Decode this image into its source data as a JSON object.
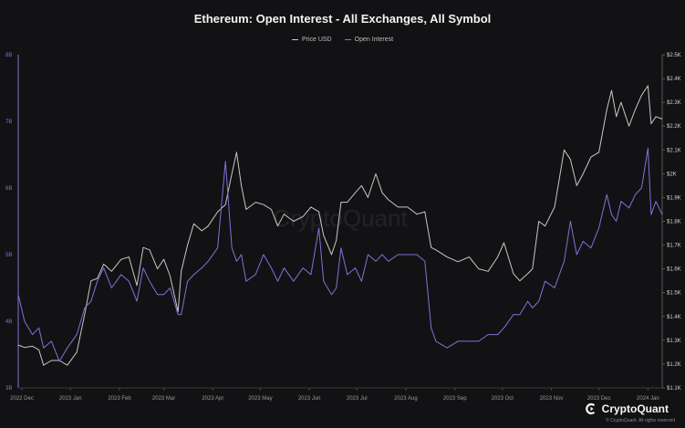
{
  "chart_data": {
    "type": "line",
    "title": "Ethereum: Open Interest - All Exchanges, All Symbol",
    "legend_position": "top-center",
    "watermark": "CryptoQuant",
    "grid": false,
    "x_ticks": [
      "2022 Dec",
      "2023 Jan",
      "2023 Feb",
      "2023 Mar",
      "2023 Apr",
      "2023 May",
      "2023 Jun",
      "2023 Jul",
      "2023 Aug",
      "2023 Sep",
      "2023 Oct",
      "2023 Nov",
      "2023 Dec",
      "2024 Jan"
    ],
    "x_range": [
      "2022-11-29",
      "2024-01-10"
    ],
    "y_left": {
      "ticks": [
        "3B",
        "4B",
        "5B",
        "6B",
        "7B",
        "8B"
      ],
      "range": [
        3,
        8
      ],
      "unit": "B"
    },
    "y_right": {
      "ticks": [
        "$1.1K",
        "$1.2K",
        "$1.3K",
        "$1.4K",
        "$1.5K",
        "$1.6K",
        "$1.7K",
        "$1.8K",
        "$1.9K",
        "$2K",
        "$2.1K",
        "$2.2K",
        "$2.3K",
        "$2.4K",
        "$2.5K"
      ],
      "range": [
        1100,
        2500
      ],
      "unit": "USD"
    },
    "series": [
      {
        "name": "Price USD",
        "axis": "right",
        "color": "#c8c8c8",
        "x": [
          "2022-11-29",
          "2022-12-03",
          "2022-12-08",
          "2022-12-12",
          "2022-12-15",
          "2022-12-20",
          "2022-12-25",
          "2022-12-30",
          "2023-01-05",
          "2023-01-10",
          "2023-01-14",
          "2023-01-18",
          "2023-01-22",
          "2023-01-27",
          "2023-02-02",
          "2023-02-07",
          "2023-02-12",
          "2023-02-16",
          "2023-02-20",
          "2023-02-25",
          "2023-03-01",
          "2023-03-05",
          "2023-03-10",
          "2023-03-12",
          "2023-03-16",
          "2023-03-20",
          "2023-03-25",
          "2023-03-29",
          "2023-04-04",
          "2023-04-09",
          "2023-04-13",
          "2023-04-16",
          "2023-04-19",
          "2023-04-22",
          "2023-04-28",
          "2023-05-03",
          "2023-05-08",
          "2023-05-12",
          "2023-05-16",
          "2023-05-22",
          "2023-05-28",
          "2023-06-02",
          "2023-06-07",
          "2023-06-10",
          "2023-06-15",
          "2023-06-18",
          "2023-06-21",
          "2023-06-25",
          "2023-06-30",
          "2023-07-04",
          "2023-07-08",
          "2023-07-13",
          "2023-07-17",
          "2023-07-21",
          "2023-07-27",
          "2023-08-02",
          "2023-08-08",
          "2023-08-13",
          "2023-08-17",
          "2023-08-20",
          "2023-08-27",
          "2023-09-03",
          "2023-09-10",
          "2023-09-16",
          "2023-09-22",
          "2023-09-28",
          "2023-10-02",
          "2023-10-08",
          "2023-10-12",
          "2023-10-17",
          "2023-10-20",
          "2023-10-24",
          "2023-10-28",
          "2023-11-03",
          "2023-11-09",
          "2023-11-13",
          "2023-11-17",
          "2023-11-21",
          "2023-11-26",
          "2023-12-01",
          "2023-12-06",
          "2023-12-09",
          "2023-12-12",
          "2023-12-15",
          "2023-12-20",
          "2023-12-24",
          "2023-12-28",
          "2024-01-01",
          "2024-01-03",
          "2024-01-06",
          "2024-01-10"
        ],
        "y": [
          1280,
          1270,
          1275,
          1260,
          1195,
          1215,
          1215,
          1195,
          1250,
          1410,
          1550,
          1560,
          1620,
          1590,
          1640,
          1650,
          1530,
          1690,
          1680,
          1600,
          1640,
          1570,
          1420,
          1590,
          1700,
          1790,
          1760,
          1780,
          1840,
          1870,
          2000,
          2090,
          1950,
          1850,
          1880,
          1870,
          1850,
          1780,
          1830,
          1800,
          1820,
          1860,
          1840,
          1740,
          1660,
          1720,
          1880,
          1880,
          1920,
          1950,
          1900,
          2000,
          1920,
          1890,
          1860,
          1860,
          1830,
          1840,
          1690,
          1680,
          1650,
          1630,
          1650,
          1600,
          1590,
          1650,
          1710,
          1580,
          1550,
          1580,
          1600,
          1800,
          1780,
          1860,
          2100,
          2060,
          1950,
          2000,
          2070,
          2090,
          2270,
          2350,
          2240,
          2300,
          2200,
          2270,
          2330,
          2370,
          2210,
          2240,
          2230
        ]
      },
      {
        "name": "Open Interest",
        "axis": "left",
        "color": "#7b74d9",
        "x": [
          "2022-11-29",
          "2022-12-03",
          "2022-12-08",
          "2022-12-12",
          "2022-12-15",
          "2022-12-20",
          "2022-12-25",
          "2022-12-30",
          "2023-01-05",
          "2023-01-10",
          "2023-01-14",
          "2023-01-18",
          "2023-01-22",
          "2023-01-27",
          "2023-02-02",
          "2023-02-07",
          "2023-02-12",
          "2023-02-16",
          "2023-02-20",
          "2023-02-25",
          "2023-03-01",
          "2023-03-05",
          "2023-03-10",
          "2023-03-12",
          "2023-03-16",
          "2023-03-20",
          "2023-03-25",
          "2023-03-29",
          "2023-04-04",
          "2023-04-09",
          "2023-04-13",
          "2023-04-16",
          "2023-04-19",
          "2023-04-22",
          "2023-04-28",
          "2023-05-03",
          "2023-05-08",
          "2023-05-12",
          "2023-05-16",
          "2023-05-22",
          "2023-05-28",
          "2023-06-02",
          "2023-06-07",
          "2023-06-10",
          "2023-06-15",
          "2023-06-18",
          "2023-06-21",
          "2023-06-25",
          "2023-06-30",
          "2023-07-04",
          "2023-07-08",
          "2023-07-13",
          "2023-07-17",
          "2023-07-21",
          "2023-07-27",
          "2023-08-02",
          "2023-08-08",
          "2023-08-13",
          "2023-08-17",
          "2023-08-20",
          "2023-08-27",
          "2023-09-03",
          "2023-09-10",
          "2023-09-16",
          "2023-09-22",
          "2023-09-28",
          "2023-10-02",
          "2023-10-08",
          "2023-10-12",
          "2023-10-17",
          "2023-10-20",
          "2023-10-24",
          "2023-10-28",
          "2023-11-03",
          "2023-11-09",
          "2023-11-13",
          "2023-11-17",
          "2023-11-21",
          "2023-11-26",
          "2023-12-01",
          "2023-12-06",
          "2023-12-09",
          "2023-12-12",
          "2023-12-15",
          "2023-12-20",
          "2023-12-24",
          "2023-12-28",
          "2024-01-01",
          "2024-01-03",
          "2024-01-06",
          "2024-01-10"
        ],
        "y": [
          4.4,
          4.0,
          3.8,
          3.9,
          3.6,
          3.7,
          3.4,
          3.6,
          3.8,
          4.2,
          4.3,
          4.6,
          4.8,
          4.5,
          4.7,
          4.6,
          4.3,
          4.8,
          4.6,
          4.4,
          4.4,
          4.5,
          4.1,
          4.1,
          4.6,
          4.7,
          4.8,
          4.9,
          5.1,
          6.4,
          5.1,
          4.9,
          5.0,
          4.6,
          4.7,
          5.0,
          4.8,
          4.6,
          4.8,
          4.6,
          4.8,
          4.7,
          5.4,
          4.6,
          4.4,
          4.5,
          5.1,
          4.7,
          4.8,
          4.6,
          5.0,
          4.9,
          5.0,
          4.9,
          5.0,
          5.0,
          5.0,
          4.9,
          3.9,
          3.7,
          3.6,
          3.7,
          3.7,
          3.7,
          3.8,
          3.8,
          3.9,
          4.1,
          4.1,
          4.3,
          4.2,
          4.3,
          4.6,
          4.5,
          4.9,
          5.5,
          5.0,
          5.2,
          5.1,
          5.4,
          5.9,
          5.6,
          5.5,
          5.8,
          5.7,
          5.9,
          6.0,
          6.6,
          5.6,
          5.8,
          5.6
        ]
      }
    ]
  },
  "brand": {
    "name": "CryptoQuant",
    "note": "© CryptoQuant. All rights reserved"
  }
}
